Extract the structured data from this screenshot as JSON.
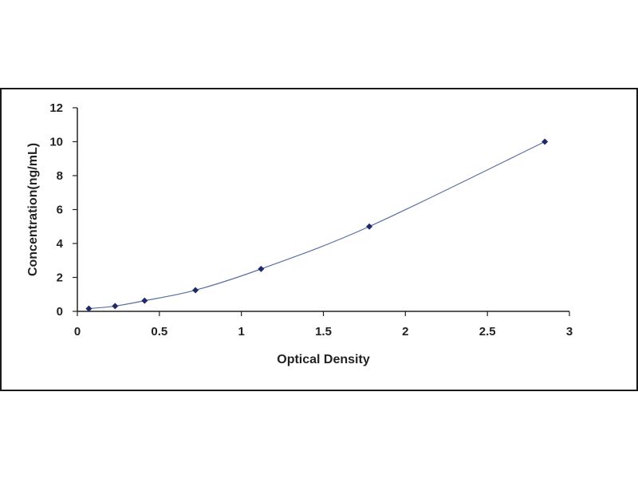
{
  "chart_data": {
    "type": "scatter",
    "title": "",
    "xlabel": "Optical Density",
    "ylabel": "Concentration(ng/mL)",
    "xlim": [
      0,
      3
    ],
    "ylim": [
      0,
      12
    ],
    "x_ticks": [
      "0",
      "0.5",
      "1",
      "1.5",
      "2",
      "2.5",
      "3"
    ],
    "y_ticks": [
      "0",
      "2",
      "4",
      "6",
      "8",
      "10",
      "12"
    ],
    "grid": false,
    "legend": "none",
    "series": [
      {
        "points": [
          {
            "x": 0.07,
            "y": 0.16
          },
          {
            "x": 0.23,
            "y": 0.31
          },
          {
            "x": 0.41,
            "y": 0.63
          },
          {
            "x": 0.72,
            "y": 1.25
          },
          {
            "x": 1.12,
            "y": 2.5
          },
          {
            "x": 1.78,
            "y": 5
          },
          {
            "x": 2.85,
            "y": 10
          }
        ],
        "marker": "diamond",
        "color": "#1f2a6b",
        "fit_line": "smooth"
      }
    ]
  }
}
